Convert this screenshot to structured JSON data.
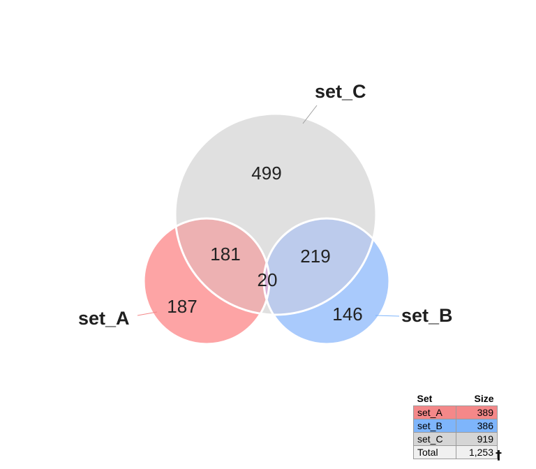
{
  "sets": [
    {
      "id": "a",
      "name": "set_A",
      "color": "#fda4a5",
      "size": "389",
      "row_color": "#f48889"
    },
    {
      "id": "b",
      "name": "set_B",
      "color": "#a9cafc",
      "size": "386",
      "row_color": "#7eb5fb"
    },
    {
      "id": "c",
      "name": "set_C",
      "color": "#e0e0e0",
      "size": "919",
      "row_color": "#d5d5d5"
    }
  ],
  "regions": {
    "a_only": "187",
    "b_only": "146",
    "c_only": "499",
    "a_c": "181",
    "b_c": "219",
    "a_b_c": "20"
  },
  "region_colors": {
    "a_c": "#edb1b2",
    "b_c": "#bccbec",
    "a_b_c": "#d9b2d9"
  },
  "legend": {
    "header_set": "Set",
    "header_size": "Size",
    "total_label": "Total",
    "total_value": "1,253",
    "total_color": "#f0f0f0",
    "footnote_mark": "†"
  }
}
